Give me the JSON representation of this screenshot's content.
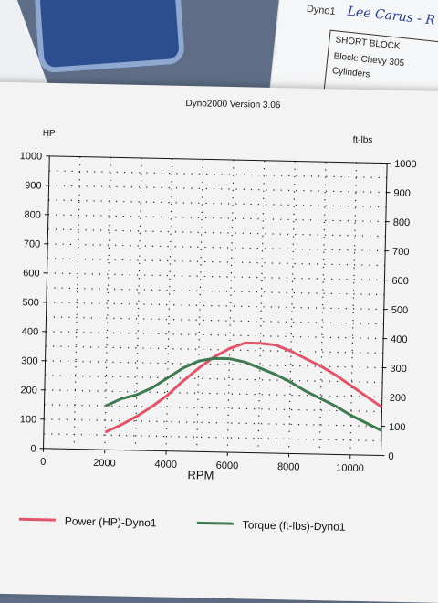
{
  "background": {
    "note_label": "Dyno1",
    "note_handwriting": "Lee Carus - R",
    "short_block_title": "SHORT BLOCK",
    "block_line": "Block:  Chevy 305",
    "cylinders_line": "Cylinders"
  },
  "chart_data": {
    "type": "line",
    "title": "Dyno2000  Version 3.06",
    "xlabel": "RPM",
    "ylabel_left": "HP",
    "ylabel_right": "ft-lbs",
    "xlim": [
      0,
      11000
    ],
    "ylim": [
      0,
      1000
    ],
    "x_ticks": [
      "0",
      "2000",
      "4000",
      "6000",
      "8000",
      "10000"
    ],
    "y_ticks": [
      "0",
      "100",
      "200",
      "300",
      "400",
      "500",
      "600",
      "700",
      "800",
      "900",
      "1000"
    ],
    "grid": true,
    "legend_position": "bottom",
    "series": [
      {
        "name": "Power (HP)-Dyno1",
        "color": "#e0556a",
        "x": [
          2000,
          2500,
          3000,
          3500,
          4000,
          4500,
          5000,
          5500,
          6000,
          6500,
          7000,
          7500,
          8000,
          8500,
          9000,
          9500,
          10000,
          10500,
          11000
        ],
        "y": [
          60,
          85,
          115,
          150,
          190,
          240,
          285,
          325,
          355,
          375,
          375,
          370,
          350,
          325,
          300,
          270,
          235,
          200,
          165
        ]
      },
      {
        "name": "Torque (ft-lbs)-Dyno1",
        "color": "#3f7a52",
        "x": [
          2000,
          2500,
          3000,
          3500,
          4000,
          4500,
          5000,
          5500,
          6000,
          6500,
          7000,
          7500,
          8000,
          8500,
          9000,
          9500,
          10000,
          10500,
          11000
        ],
        "y": [
          150,
          175,
          190,
          215,
          250,
          285,
          310,
          320,
          320,
          310,
          290,
          270,
          245,
          215,
          190,
          165,
          135,
          110,
          85
        ]
      }
    ]
  }
}
